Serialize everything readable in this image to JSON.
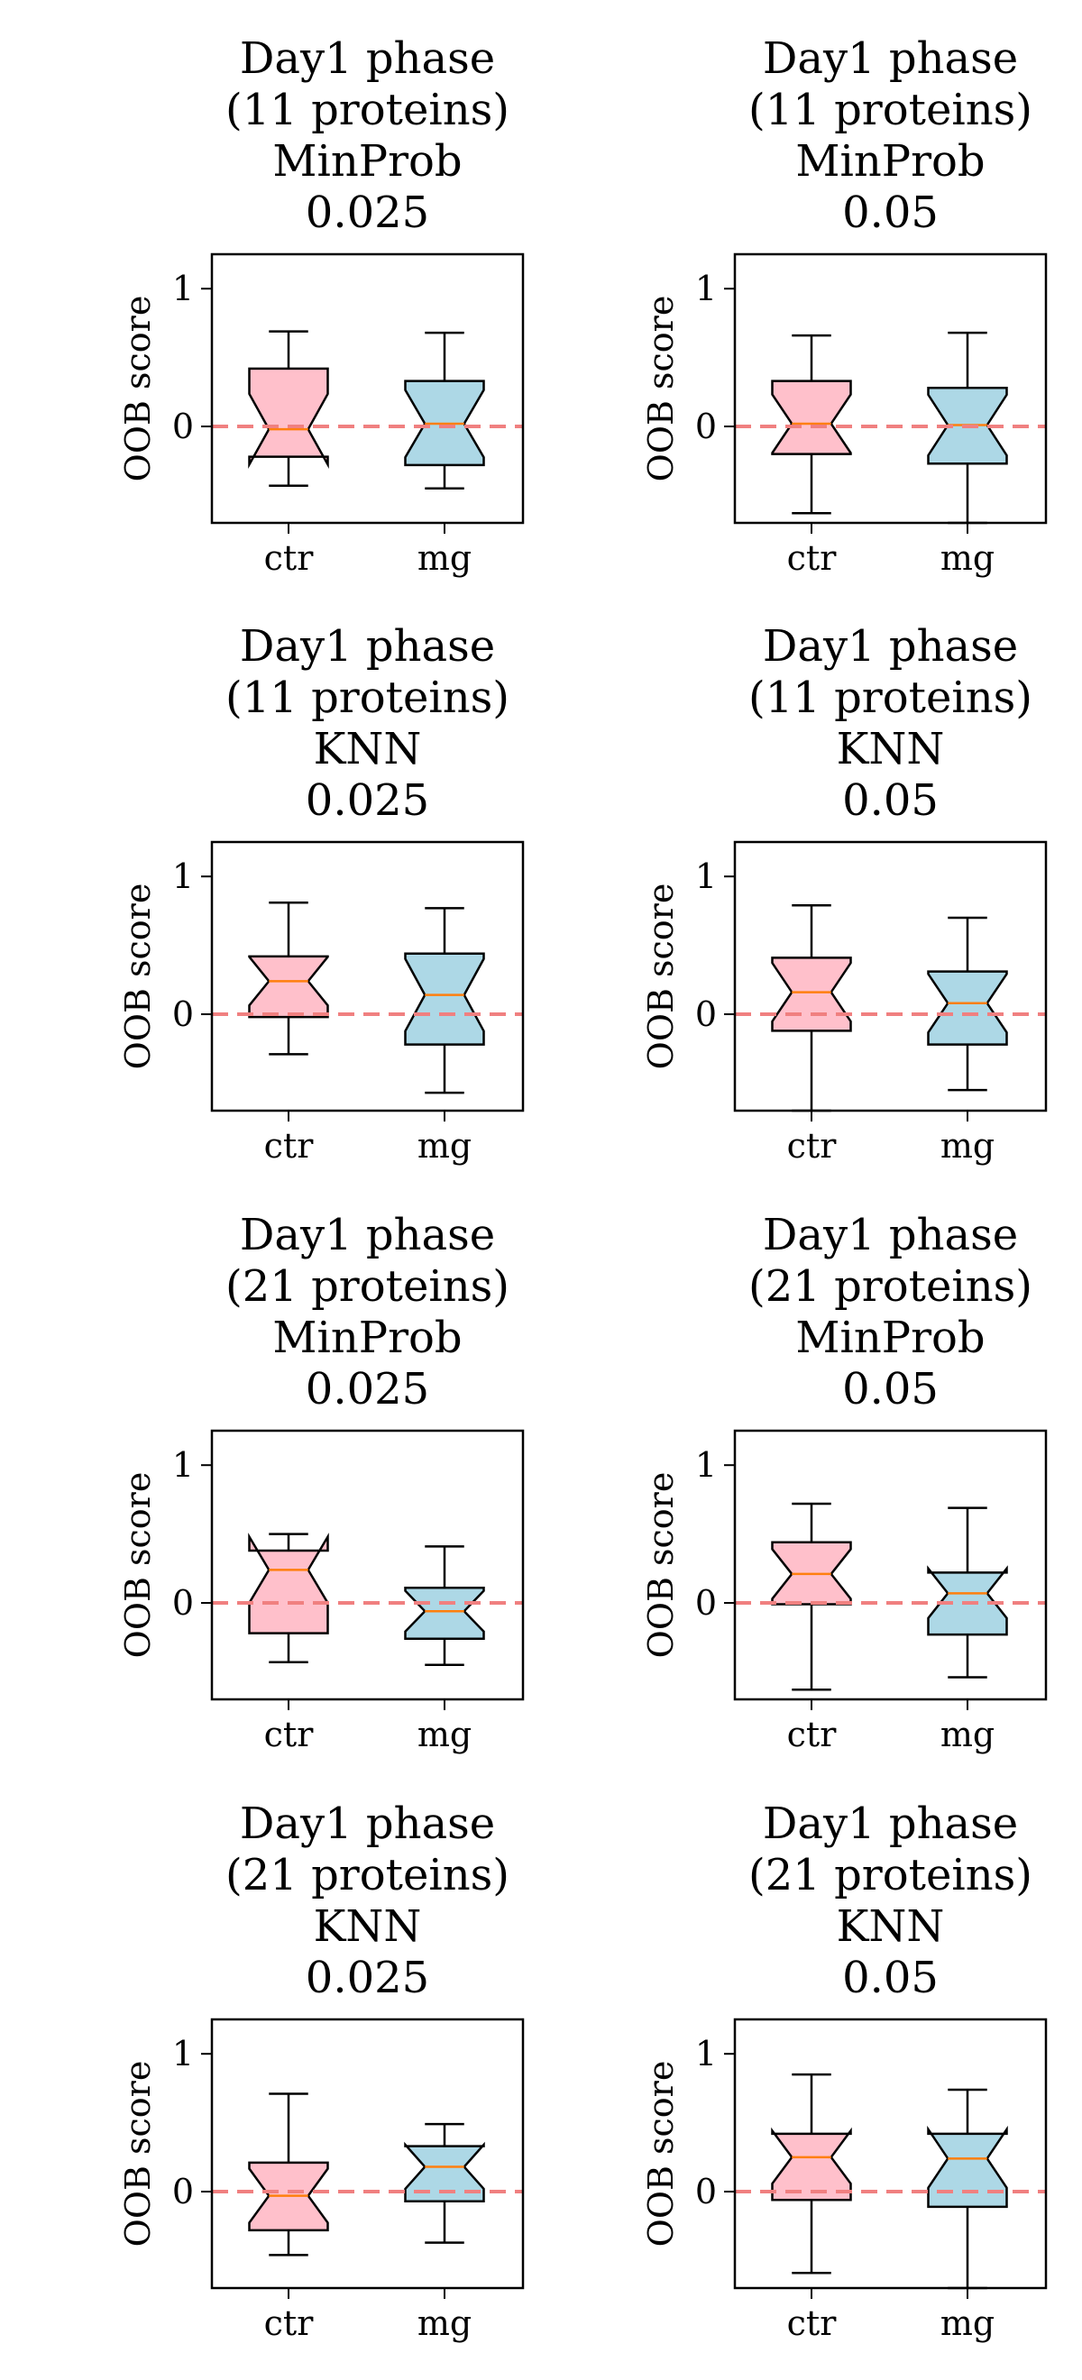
{
  "colors": {
    "ctr_box": "#ffc0cb",
    "mg_box": "#add8e6",
    "median": "#ff7f0e",
    "reference_line": "#f08080",
    "axes": "#000000"
  },
  "chart_data": [
    {
      "type": "box",
      "title_lines": [
        "Day1 phase",
        "(11 proteins)",
        "MinProb",
        "0.025"
      ],
      "ylabel": "OOB score",
      "ylim": [
        -0.7,
        1.25
      ],
      "yticks": [
        1,
        0
      ],
      "ytick_labels": [
        "1",
        "0"
      ],
      "reference_line_y": 0,
      "categories": [
        "ctr",
        "mg"
      ],
      "boxes": [
        {
          "name": "ctr",
          "whisker_low": -0.43,
          "q1": -0.22,
          "median": -0.02,
          "q3": 0.42,
          "whisker_high": 0.69
        },
        {
          "name": "mg",
          "whisker_low": -0.45,
          "q1": -0.28,
          "median": 0.02,
          "q3": 0.33,
          "whisker_high": 0.68
        }
      ]
    },
    {
      "type": "box",
      "title_lines": [
        "Day1 phase",
        "(11 proteins)",
        "MinProb",
        "0.05"
      ],
      "ylabel": "OOB score",
      "ylim": [
        -0.7,
        1.25
      ],
      "yticks": [
        1,
        0
      ],
      "ytick_labels": [
        "1",
        "0"
      ],
      "reference_line_y": 0,
      "categories": [
        "ctr",
        "mg"
      ],
      "boxes": [
        {
          "name": "ctr",
          "whisker_low": -0.63,
          "q1": -0.2,
          "median": 0.02,
          "q3": 0.33,
          "whisker_high": 0.66
        },
        {
          "name": "mg",
          "whisker_low": -0.7,
          "q1": -0.27,
          "median": 0.01,
          "q3": 0.28,
          "whisker_high": 0.68
        }
      ]
    },
    {
      "type": "box",
      "title_lines": [
        "Day1 phase",
        "(11 proteins)",
        "KNN",
        "0.025"
      ],
      "ylabel": "OOB score",
      "ylim": [
        -0.7,
        1.25
      ],
      "yticks": [
        1,
        0
      ],
      "ytick_labels": [
        "1",
        "0"
      ],
      "reference_line_y": 0,
      "categories": [
        "ctr",
        "mg"
      ],
      "boxes": [
        {
          "name": "ctr",
          "whisker_low": -0.29,
          "q1": -0.02,
          "median": 0.24,
          "q3": 0.42,
          "whisker_high": 0.81
        },
        {
          "name": "mg",
          "whisker_low": -0.57,
          "q1": -0.22,
          "median": 0.14,
          "q3": 0.44,
          "whisker_high": 0.77
        }
      ]
    },
    {
      "type": "box",
      "title_lines": [
        "Day1 phase",
        "(11 proteins)",
        "KNN",
        "0.05"
      ],
      "ylabel": "OOB score",
      "ylim": [
        -0.7,
        1.25
      ],
      "yticks": [
        1,
        0
      ],
      "ytick_labels": [
        "1",
        "0"
      ],
      "reference_line_y": 0,
      "categories": [
        "ctr",
        "mg"
      ],
      "boxes": [
        {
          "name": "ctr",
          "whisker_low": -0.7,
          "q1": -0.12,
          "median": 0.16,
          "q3": 0.41,
          "whisker_high": 0.79
        },
        {
          "name": "mg",
          "whisker_low": -0.55,
          "q1": -0.22,
          "median": 0.08,
          "q3": 0.31,
          "whisker_high": 0.7
        }
      ]
    },
    {
      "type": "box",
      "title_lines": [
        "Day1 phase",
        "(21 proteins)",
        "MinProb",
        "0.025"
      ],
      "ylabel": "OOB score",
      "ylim": [
        -0.7,
        1.25
      ],
      "yticks": [
        1,
        0
      ],
      "ytick_labels": [
        "1",
        "0"
      ],
      "reference_line_y": 0,
      "categories": [
        "ctr",
        "mg"
      ],
      "boxes": [
        {
          "name": "ctr",
          "whisker_low": -0.43,
          "q1": -0.22,
          "median": 0.24,
          "q3": 0.38,
          "whisker_high": 0.5
        },
        {
          "name": "mg",
          "whisker_low": -0.45,
          "q1": -0.26,
          "median": -0.06,
          "q3": 0.11,
          "whisker_high": 0.41
        }
      ]
    },
    {
      "type": "box",
      "title_lines": [
        "Day1 phase",
        "(21 proteins)",
        "MinProb",
        "0.05"
      ],
      "ylabel": "OOB score",
      "ylim": [
        -0.7,
        1.25
      ],
      "yticks": [
        1,
        0
      ],
      "ytick_labels": [
        "1",
        "0"
      ],
      "reference_line_y": 0,
      "categories": [
        "ctr",
        "mg"
      ],
      "boxes": [
        {
          "name": "ctr",
          "whisker_low": -0.63,
          "q1": -0.01,
          "median": 0.21,
          "q3": 0.44,
          "whisker_high": 0.72
        },
        {
          "name": "mg",
          "whisker_low": -0.54,
          "q1": -0.23,
          "median": 0.07,
          "q3": 0.22,
          "whisker_high": 0.69
        }
      ]
    },
    {
      "type": "box",
      "title_lines": [
        "Day1 phase",
        "(21 proteins)",
        "KNN",
        "0.025"
      ],
      "ylabel": "OOB score",
      "ylim": [
        -0.7,
        1.25
      ],
      "yticks": [
        1,
        0
      ],
      "ytick_labels": [
        "1",
        "0"
      ],
      "reference_line_y": 0,
      "categories": [
        "ctr",
        "mg"
      ],
      "boxes": [
        {
          "name": "ctr",
          "whisker_low": -0.46,
          "q1": -0.28,
          "median": -0.03,
          "q3": 0.21,
          "whisker_high": 0.71
        },
        {
          "name": "mg",
          "whisker_low": -0.37,
          "q1": -0.07,
          "median": 0.18,
          "q3": 0.33,
          "whisker_high": 0.49
        }
      ]
    },
    {
      "type": "box",
      "title_lines": [
        "Day1 phase",
        "(21 proteins)",
        "KNN",
        "0.05"
      ],
      "ylabel": "OOB score",
      "ylim": [
        -0.7,
        1.25
      ],
      "yticks": [
        1,
        0
      ],
      "ytick_labels": [
        "1",
        "0"
      ],
      "reference_line_y": 0,
      "categories": [
        "ctr",
        "mg"
      ],
      "boxes": [
        {
          "name": "ctr",
          "whisker_low": -0.59,
          "q1": -0.06,
          "median": 0.25,
          "q3": 0.42,
          "whisker_high": 0.85
        },
        {
          "name": "mg",
          "whisker_low": -0.7,
          "q1": -0.11,
          "median": 0.24,
          "q3": 0.42,
          "whisker_high": 0.74
        }
      ]
    }
  ]
}
